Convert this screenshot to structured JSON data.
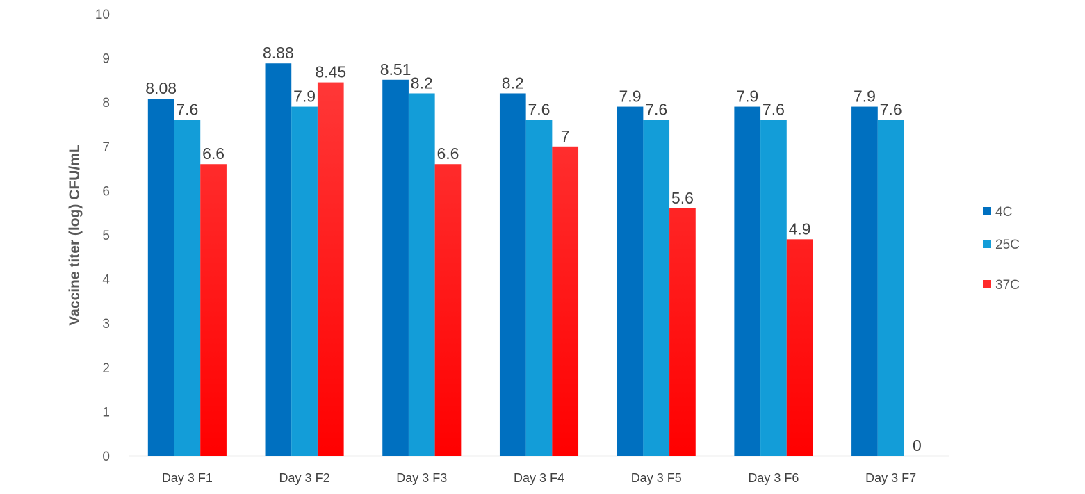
{
  "chart_data": {
    "type": "bar",
    "title": "",
    "xlabel": "",
    "ylabel": "Vaccine titer (log) CFU/mL",
    "ylim": [
      0,
      10
    ],
    "yticks": [
      "0",
      "1",
      "2",
      "3",
      "4",
      "5",
      "6",
      "7",
      "8",
      "9",
      "10"
    ],
    "grid": false,
    "legend_position": "right",
    "categories": [
      "Day 3 F1",
      "Day 3 F2",
      "Day 3 F3",
      "Day 3 F4",
      "Day 3 F5",
      "Day 3 F6",
      "Day 3 F7"
    ],
    "series": [
      {
        "name": "4C",
        "color": "#0070C0",
        "values": [
          8.08,
          8.88,
          8.51,
          8.2,
          7.9,
          7.9,
          7.9
        ]
      },
      {
        "name": "25C",
        "color": "#139DD8",
        "values": [
          7.6,
          7.9,
          8.2,
          7.6,
          7.6,
          7.6,
          7.6
        ]
      },
      {
        "name": "37C",
        "color": "#FF3B3B",
        "gradient_to": "#FF0000",
        "values": [
          6.6,
          8.45,
          6.6,
          7,
          5.6,
          4.9,
          0
        ]
      }
    ]
  }
}
